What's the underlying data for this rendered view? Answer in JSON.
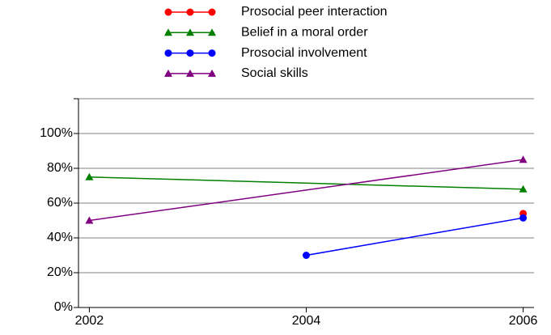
{
  "chart_data": {
    "type": "line",
    "xlim": [
      2001.9,
      2006.1
    ],
    "xticks": [
      2002,
      2004,
      2006
    ],
    "ylim": [
      0,
      120
    ],
    "yticks": [
      {
        "value": 0,
        "label": "0%"
      },
      {
        "value": 20,
        "label": "20%"
      },
      {
        "value": 40,
        "label": "40%"
      },
      {
        "value": 60,
        "label": "60%"
      },
      {
        "value": 80,
        "label": "80%"
      },
      {
        "value": 100,
        "label": "100%"
      }
    ],
    "grid": true,
    "legend": "top",
    "series": [
      {
        "name": "Prosocial peer interaction",
        "color": "#ff0000",
        "marker": "circle",
        "x": [
          2006
        ],
        "values": [
          54
        ]
      },
      {
        "name": "Belief in a moral order",
        "color": "#008000",
        "marker": "triangle",
        "x": [
          2002,
          2006
        ],
        "values": [
          75,
          68
        ]
      },
      {
        "name": "Prosocial involvement",
        "color": "#0000ff",
        "marker": "circle",
        "x": [
          2004,
          2006
        ],
        "values": [
          30,
          51.5
        ]
      },
      {
        "name": "Social skills",
        "color": "#800080",
        "marker": "triangle",
        "x": [
          2002,
          2006
        ],
        "values": [
          50,
          85
        ]
      }
    ]
  }
}
